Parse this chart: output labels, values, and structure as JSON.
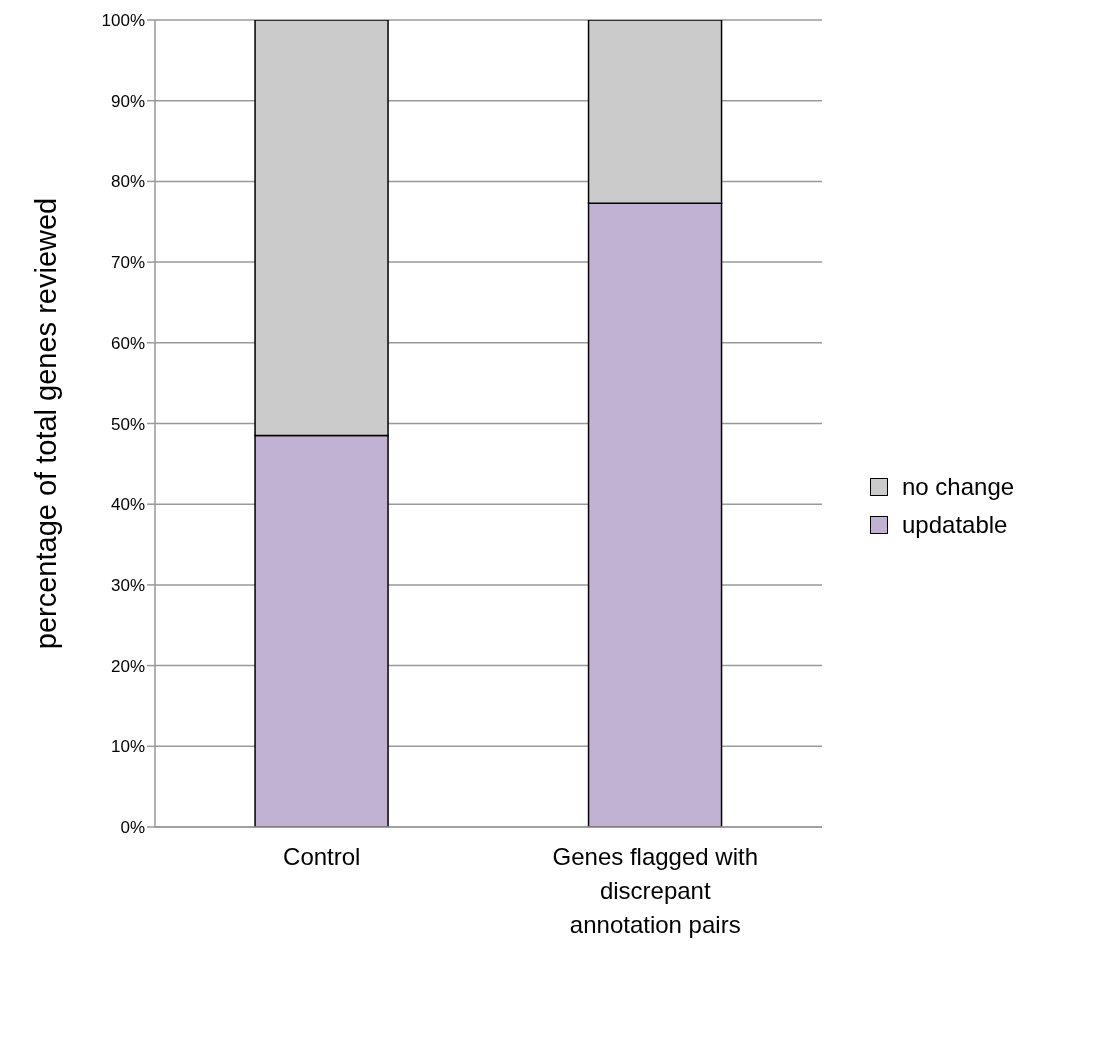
{
  "chart_data": {
    "type": "bar",
    "stacked": true,
    "ylabel": "percentage of total genes reviewed",
    "categories": [
      "Control",
      "Genes flagged with discrepant annotation pairs"
    ],
    "series": [
      {
        "name": "updatable",
        "color": "#c1b2d4",
        "values": [
          48.5,
          77.3
        ]
      },
      {
        "name": "no change",
        "color": "#cbcbcb",
        "values": [
          51.5,
          22.7
        ]
      }
    ],
    "ylim": [
      0,
      100
    ],
    "yticks": [
      {
        "value": 0,
        "label": "0%"
      },
      {
        "value": 10,
        "label": "10%"
      },
      {
        "value": 20,
        "label": "20%"
      },
      {
        "value": 30,
        "label": "30%"
      },
      {
        "value": 40,
        "label": "40%"
      },
      {
        "value": 50,
        "label": "50%"
      },
      {
        "value": 60,
        "label": "60%"
      },
      {
        "value": 70,
        "label": "70%"
      },
      {
        "value": 80,
        "label": "80%"
      },
      {
        "value": 90,
        "label": "90%"
      },
      {
        "value": 100,
        "label": "100%"
      }
    ],
    "grid": "y",
    "legend": "right"
  }
}
